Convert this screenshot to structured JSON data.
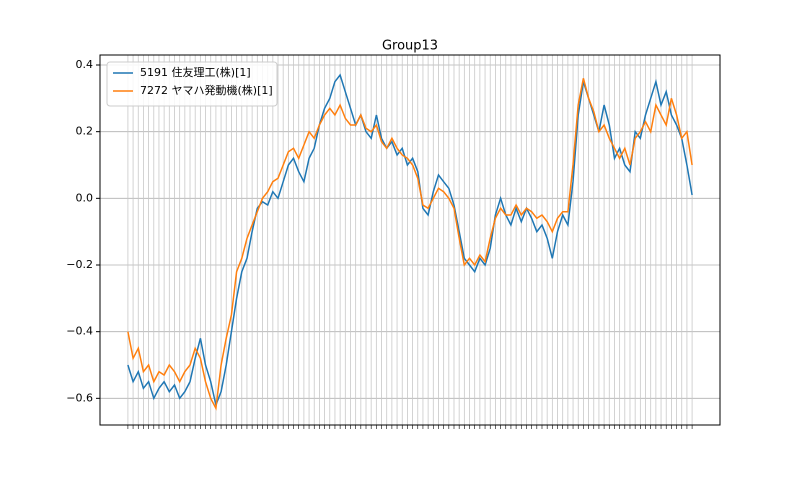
{
  "chart_data": {
    "type": "line",
    "title": "Group13",
    "categories": [
      null,
      null,
      null,
      null,
      null,
      null,
      null,
      null,
      null,
      null,
      null,
      null,
      null,
      null,
      null,
      null,
      null,
      null,
      null,
      null,
      null,
      null,
      null,
      null,
      null,
      null,
      null,
      null,
      null,
      null,
      null,
      null,
      null,
      null,
      null,
      null,
      null,
      null,
      null,
      null,
      null,
      null,
      null,
      null,
      null,
      null,
      null,
      null,
      null,
      null,
      null,
      null,
      null,
      null,
      null,
      null,
      null,
      null,
      null,
      null,
      null,
      null,
      null,
      null,
      null,
      null,
      null,
      null,
      null,
      null,
      null,
      null,
      null,
      null,
      null,
      null,
      null,
      null,
      null,
      null,
      null,
      null,
      null,
      null,
      null,
      null,
      null,
      null,
      null,
      null,
      null,
      null,
      null,
      null,
      null,
      null,
      null,
      null,
      null,
      null,
      null,
      null,
      null,
      null,
      null,
      null,
      null,
      null,
      null,
      null
    ],
    "series": [
      {
        "name": "5191 住友理工(株)[1]",
        "color": "#1f77b4",
        "values": [
          -0.5,
          -0.55,
          -0.52,
          -0.57,
          -0.55,
          -0.6,
          -0.57,
          -0.55,
          -0.58,
          -0.56,
          -0.6,
          -0.58,
          -0.55,
          -0.48,
          -0.42,
          -0.5,
          -0.55,
          -0.62,
          -0.58,
          -0.5,
          -0.4,
          -0.3,
          -0.22,
          -0.18,
          -0.1,
          -0.03,
          -0.01,
          -0.02,
          0.02,
          0.0,
          0.05,
          0.1,
          0.12,
          0.08,
          0.05,
          0.12,
          0.15,
          0.22,
          0.27,
          0.3,
          0.35,
          0.37,
          0.32,
          0.27,
          0.22,
          0.25,
          0.2,
          0.18,
          0.25,
          0.18,
          0.15,
          0.17,
          0.13,
          0.15,
          0.1,
          0.12,
          0.08,
          -0.03,
          -0.05,
          0.02,
          0.07,
          0.05,
          0.03,
          -0.02,
          -0.1,
          -0.18,
          -0.2,
          -0.22,
          -0.18,
          -0.2,
          -0.15,
          -0.05,
          0.0,
          -0.05,
          -0.08,
          -0.03,
          -0.07,
          -0.03,
          -0.06,
          -0.1,
          -0.08,
          -0.12,
          -0.18,
          -0.1,
          -0.05,
          -0.08,
          0.05,
          0.25,
          0.35,
          0.3,
          0.25,
          0.2,
          0.28,
          0.22,
          0.12,
          0.15,
          0.1,
          0.08,
          0.2,
          0.18,
          0.25,
          0.3,
          0.35,
          0.28,
          0.32,
          0.25,
          0.22,
          0.18,
          0.1,
          0.01
        ]
      },
      {
        "name": "7272 ヤマハ発動機(株)[1]",
        "color": "#ff7f0e",
        "values": [
          -0.4,
          -0.48,
          -0.45,
          -0.52,
          -0.5,
          -0.55,
          -0.52,
          -0.53,
          -0.5,
          -0.52,
          -0.55,
          -0.52,
          -0.5,
          -0.45,
          -0.48,
          -0.55,
          -0.6,
          -0.63,
          -0.5,
          -0.42,
          -0.35,
          -0.22,
          -0.18,
          -0.12,
          -0.08,
          -0.04,
          0.0,
          0.02,
          0.05,
          0.06,
          0.1,
          0.14,
          0.15,
          0.12,
          0.16,
          0.2,
          0.18,
          0.22,
          0.25,
          0.27,
          0.25,
          0.28,
          0.24,
          0.22,
          0.22,
          0.25,
          0.21,
          0.2,
          0.22,
          0.17,
          0.15,
          0.18,
          0.15,
          0.13,
          0.12,
          0.1,
          0.06,
          -0.02,
          -0.03,
          0.0,
          0.03,
          0.02,
          0.0,
          -0.03,
          -0.12,
          -0.2,
          -0.18,
          -0.2,
          -0.17,
          -0.19,
          -0.12,
          -0.06,
          -0.03,
          -0.05,
          -0.05,
          -0.02,
          -0.05,
          -0.03,
          -0.04,
          -0.06,
          -0.05,
          -0.07,
          -0.1,
          -0.06,
          -0.04,
          -0.04,
          0.1,
          0.28,
          0.36,
          0.3,
          0.26,
          0.2,
          0.22,
          0.18,
          0.15,
          0.12,
          0.15,
          0.1,
          0.18,
          0.2,
          0.23,
          0.2,
          0.28,
          0.25,
          0.22,
          0.3,
          0.25,
          0.18,
          0.2,
          0.1
        ]
      }
    ],
    "ylim": [
      -0.68,
      0.43
    ],
    "yticks": [
      {
        "value": -0.6,
        "label": "−0.6"
      },
      {
        "value": -0.4,
        "label": "−0.4"
      },
      {
        "value": -0.2,
        "label": "−0.2"
      },
      {
        "value": 0,
        "label": "0.0"
      },
      0.2,
      0.4
    ],
    "grid": true,
    "legend": "upper-left"
  }
}
